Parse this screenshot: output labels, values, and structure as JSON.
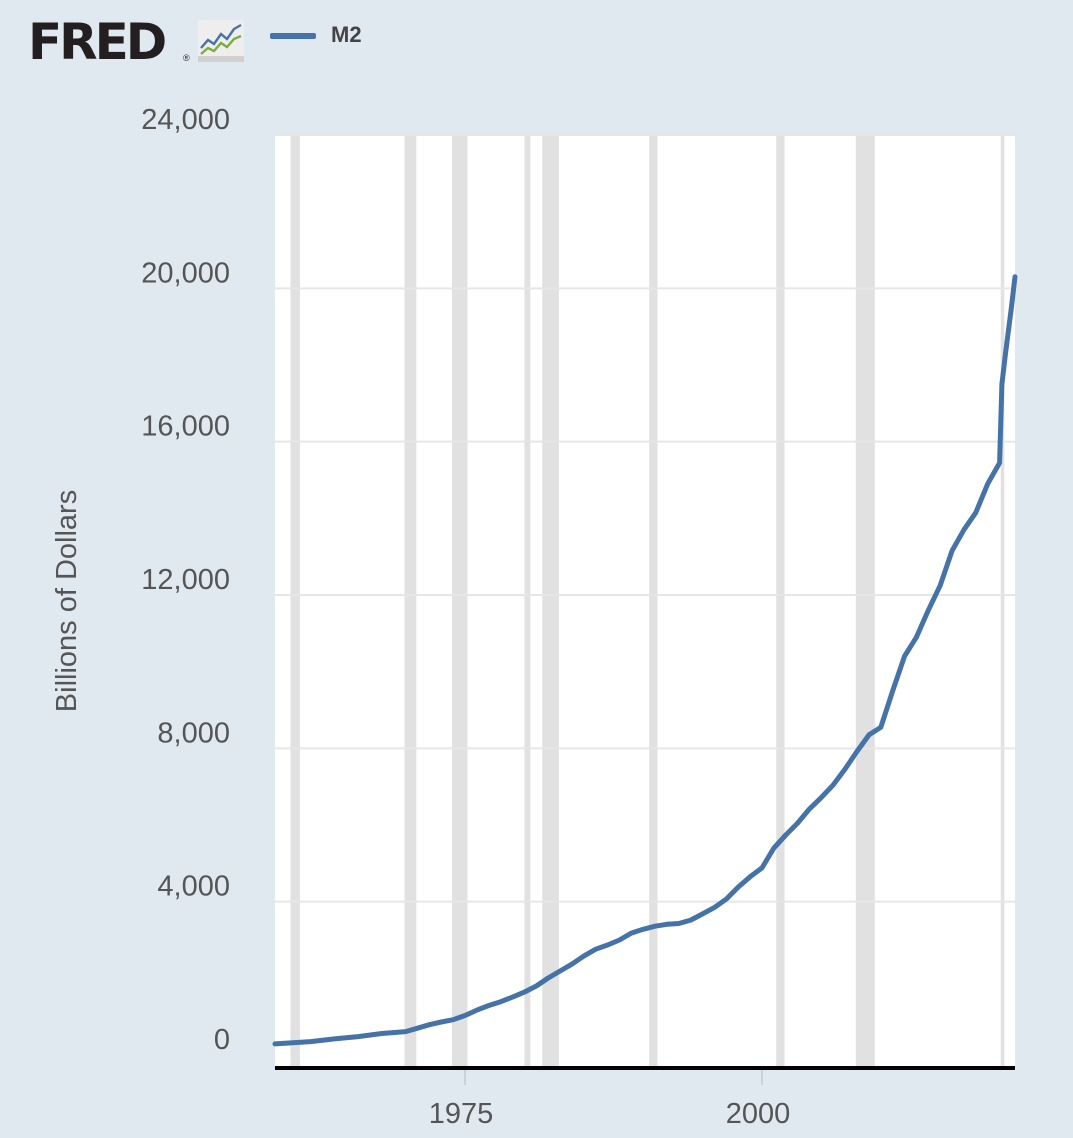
{
  "brand": {
    "logo_text": "FRED",
    "registered_mark": "®",
    "icon": "fred-chart-icon"
  },
  "legend": {
    "label": "M2",
    "color": "#4572a7"
  },
  "colors": {
    "background": "#e1e9f0",
    "plot_background": "#ffffff",
    "recession": "#e1e1e1",
    "line": "#4572a7",
    "axis": "#000000",
    "text": "#555555"
  },
  "chart_data": {
    "type": "line",
    "title": "",
    "xlabel": "",
    "ylabel": "Billions of Dollars",
    "xlim": [
      1959.0,
      2021.3
    ],
    "ylim": [
      0,
      24000
    ],
    "yticks": [
      0,
      4000,
      8000,
      12000,
      16000,
      20000,
      24000
    ],
    "ytick_labels": [
      "0",
      "4,000",
      "8,000",
      "12,000",
      "16,000",
      "20,000",
      "24,000"
    ],
    "xticks": [
      1975,
      2000
    ],
    "xtick_labels": [
      "1975",
      "2000"
    ],
    "grid": true,
    "recessions": [
      [
        1960.3,
        1961.1
      ],
      [
        1969.9,
        1970.9
      ],
      [
        1973.9,
        1975.2
      ],
      [
        1980.0,
        1980.5
      ],
      [
        1981.5,
        1982.9
      ],
      [
        1990.5,
        1991.2
      ],
      [
        2001.2,
        2001.9
      ],
      [
        2007.9,
        2009.5
      ],
      [
        2020.1,
        2020.4
      ]
    ],
    "series": [
      {
        "name": "M2",
        "x": [
          1959.0,
          1960,
          1962,
          1964,
          1966,
          1968,
          1970,
          1971,
          1972,
          1973,
          1974,
          1975,
          1976,
          1977,
          1978,
          1979,
          1980,
          1981,
          1982,
          1983,
          1984,
          1985,
          1986,
          1987,
          1988,
          1989,
          1990,
          1991,
          1992,
          1993,
          1994,
          1995,
          1996,
          1997,
          1998,
          1999,
          2000,
          2001,
          2002,
          2003,
          2004,
          2005,
          2006,
          2007,
          2008,
          2008.8,
          2009,
          2010,
          2011,
          2012,
          2013,
          2014,
          2015,
          2016,
          2017,
          2018,
          2019,
          2020.0,
          2020.2,
          2020.5,
          2021.0,
          2021.3
        ],
        "values": [
          290,
          310,
          350,
          420,
          480,
          560,
          610,
          700,
          790,
          860,
          920,
          1030,
          1170,
          1290,
          1390,
          1510,
          1640,
          1800,
          2010,
          2190,
          2370,
          2580,
          2760,
          2870,
          3000,
          3180,
          3280,
          3360,
          3410,
          3430,
          3520,
          3680,
          3850,
          4070,
          4380,
          4650,
          4880,
          5400,
          5740,
          6050,
          6420,
          6720,
          7050,
          7460,
          7920,
          8260,
          8350,
          8550,
          9500,
          10400,
          10900,
          11600,
          12250,
          13150,
          13700,
          14150,
          14900,
          15450,
          17500,
          18300,
          19500,
          20300
        ]
      }
    ]
  }
}
